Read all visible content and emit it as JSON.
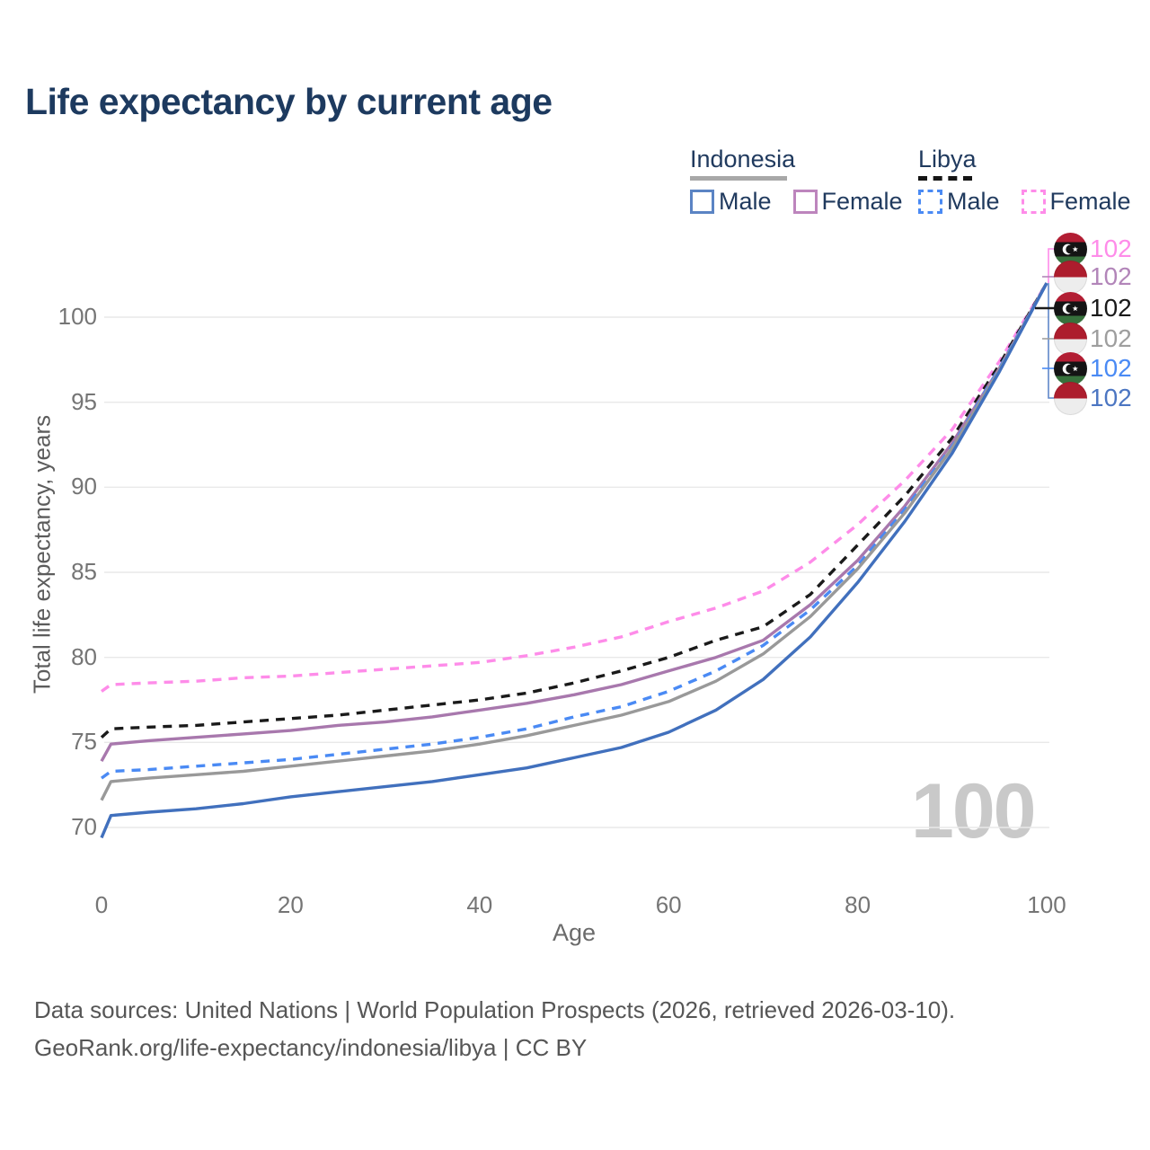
{
  "title": "Life expectancy by current age",
  "legend": {
    "indonesia": {
      "name": "Indonesia",
      "male_label": "Male",
      "female_label": "Female"
    },
    "libya": {
      "name": "Libya",
      "male_label": "Male",
      "female_label": "Female"
    }
  },
  "axes": {
    "x_label": "Age",
    "y_label": "Total life expectancy, years",
    "x_ticks": [
      0,
      20,
      40,
      60,
      80,
      100
    ],
    "y_ticks": [
      70,
      75,
      80,
      85,
      90,
      95,
      100
    ]
  },
  "watermark": "100",
  "colors": {
    "title_text": "#1d3a5f",
    "legend_text": "#203a5e",
    "indonesia_male": "#4170bd",
    "indonesia_female": "#a878ad",
    "indonesia_total": "#999999",
    "libya_male": "#4a8af4",
    "libya_female": "#fe8ce9",
    "libya_total": "#1a1a1a",
    "gridline": "#e9e9e9",
    "tick_text": "#757575",
    "watermark_text": "#c9c9c9"
  },
  "end_labels": [
    {
      "flag": "libya",
      "value": "102",
      "color": "#fe8ce9",
      "series": "Libya Female"
    },
    {
      "flag": "indonesia",
      "value": "102",
      "color": "#b285b9",
      "series": "Indonesia Female"
    },
    {
      "flag": "libya",
      "value": "102",
      "color": "#1a1a1a",
      "series": "Libya"
    },
    {
      "flag": "indonesia",
      "value": "102",
      "color": "#9e9e9e",
      "series": "Indonesia"
    },
    {
      "flag": "libya",
      "value": "102",
      "color": "#4a8af4",
      "series": "Libya Male"
    },
    {
      "flag": "indonesia",
      "value": "102",
      "color": "#4c76c2",
      "series": "Indonesia Male"
    }
  ],
  "footer": {
    "line1": "Data sources: United Nations | World Population Prospects (2026, retrieved 2026-03-10).",
    "line2": "GeoRank.org/life-expectancy/indonesia/libya | CC BY"
  },
  "chart_data": {
    "type": "line",
    "title": "Life expectancy by current age",
    "xlabel": "Age",
    "ylabel": "Total life expectancy, years",
    "xlim": [
      0,
      100
    ],
    "ylim": [
      68,
      103
    ],
    "grid": "horizontal",
    "x": [
      0,
      1,
      5,
      10,
      15,
      20,
      25,
      30,
      35,
      40,
      45,
      50,
      55,
      60,
      65,
      70,
      75,
      80,
      85,
      90,
      95,
      100
    ],
    "series": [
      {
        "name": "Libya Female",
        "country": "Libya",
        "sex": "Female",
        "style": "dashed",
        "color": "#fe8ce9",
        "values": [
          78.0,
          78.4,
          78.5,
          78.6,
          78.8,
          78.9,
          79.1,
          79.3,
          79.5,
          79.7,
          80.1,
          80.6,
          81.2,
          82.1,
          82.9,
          83.9,
          85.6,
          87.8,
          90.4,
          93.4,
          97.4,
          102
        ]
      },
      {
        "name": "Libya",
        "country": "Libya",
        "sex": "Both",
        "style": "dashed",
        "color": "#1a1a1a",
        "values": [
          75.3,
          75.8,
          75.9,
          76.0,
          76.2,
          76.4,
          76.6,
          76.9,
          77.2,
          77.5,
          77.9,
          78.5,
          79.2,
          80.0,
          81.0,
          81.8,
          83.7,
          86.6,
          89.5,
          92.9,
          97.2,
          102
        ]
      },
      {
        "name": "Indonesia Female",
        "country": "Indonesia",
        "sex": "Female",
        "style": "solid",
        "color": "#a878ad",
        "values": [
          73.9,
          74.9,
          75.1,
          75.3,
          75.5,
          75.7,
          76.0,
          76.2,
          76.5,
          76.9,
          77.3,
          77.8,
          78.4,
          79.2,
          80.0,
          81.0,
          83.1,
          85.7,
          88.9,
          92.6,
          97.0,
          102
        ]
      },
      {
        "name": "Libya Male",
        "country": "Libya",
        "sex": "Male",
        "style": "dashed",
        "color": "#4a8af4",
        "values": [
          72.9,
          73.3,
          73.4,
          73.6,
          73.8,
          74.0,
          74.3,
          74.6,
          74.9,
          75.3,
          75.8,
          76.5,
          77.1,
          78.0,
          79.2,
          80.7,
          82.8,
          85.4,
          88.7,
          92.4,
          97.0,
          102
        ]
      },
      {
        "name": "Indonesia",
        "country": "Indonesia",
        "sex": "Both",
        "style": "solid",
        "color": "#999999",
        "values": [
          71.6,
          72.7,
          72.9,
          73.1,
          73.3,
          73.6,
          73.9,
          74.2,
          74.5,
          74.9,
          75.4,
          76.0,
          76.6,
          77.4,
          78.6,
          80.2,
          82.4,
          85.2,
          88.5,
          92.3,
          96.9,
          102
        ]
      },
      {
        "name": "Indonesia Male",
        "country": "Indonesia",
        "sex": "Male",
        "style": "solid",
        "color": "#4170bd",
        "values": [
          69.4,
          70.7,
          70.9,
          71.1,
          71.4,
          71.8,
          72.1,
          72.4,
          72.7,
          73.1,
          73.5,
          74.1,
          74.7,
          75.6,
          76.9,
          78.7,
          81.2,
          84.4,
          88.0,
          92.0,
          96.8,
          102
        ]
      }
    ]
  }
}
